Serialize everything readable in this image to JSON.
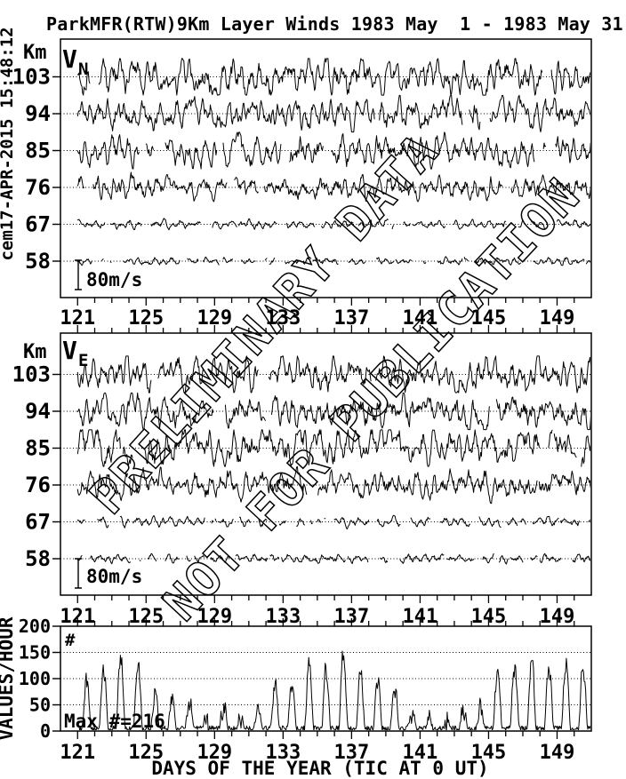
{
  "page": {
    "background": "#ffffff",
    "foreground": "#000000"
  },
  "header": {
    "title": "ParkMFR(RTW)9Km Layer Winds 1983 May  1 - 1983 May 31",
    "timestamp_vertical": "cem17-APR-2015 15:48:12"
  },
  "watermark": {
    "line1": "PRELIMINARY DATA",
    "line2": "NOT FOR PUBLICATION"
  },
  "x_axis": {
    "title": "DAYS OF THE YEAR (TIC AT 0 UT)",
    "tick_labels": [
      121,
      125,
      129,
      133,
      137,
      141,
      145,
      149
    ],
    "range_days": [
      120,
      151
    ],
    "minor_tick_every_days": 1
  },
  "chart_data": [
    {
      "id": "vn",
      "type": "line",
      "label_main": "V",
      "label_sub": "N",
      "unit_label": "Km",
      "scale_label": "80m/s",
      "scale_bar_ms": 80,
      "altitudes_km": [
        103,
        94,
        85,
        76,
        67,
        58
      ],
      "x_range_days": [
        120,
        151
      ],
      "samples_per_day": 24,
      "baseline_value_ms": 0,
      "series": [
        {
          "altitude_km": 103,
          "amplitude_ms": 40,
          "tide_ms": 18,
          "phi": 0.78,
          "gap_rate": 0.004,
          "seed": 101
        },
        {
          "altitude_km": 94,
          "amplitude_ms": 34,
          "tide_ms": 15,
          "phi": 0.78,
          "gap_rate": 0.004,
          "seed": 102
        },
        {
          "altitude_km": 85,
          "amplitude_ms": 34,
          "tide_ms": 16,
          "phi": 0.78,
          "gap_rate": 0.006,
          "seed": 103
        },
        {
          "altitude_km": 76,
          "amplitude_ms": 26,
          "tide_ms": 12,
          "phi": 0.74,
          "gap_rate": 0.008,
          "seed": 104
        },
        {
          "altitude_km": 67,
          "amplitude_ms": 9,
          "tide_ms": 6,
          "phi": 0.6,
          "gap_rate": 0.035,
          "seed": 105
        },
        {
          "altitude_km": 58,
          "amplitude_ms": 8,
          "tide_ms": 5,
          "phi": 0.58,
          "gap_rate": 0.045,
          "seed": 106
        }
      ]
    },
    {
      "id": "ve",
      "type": "line",
      "label_main": "V",
      "label_sub": "E",
      "unit_label": "Km",
      "scale_label": "80m/s",
      "scale_bar_ms": 80,
      "altitudes_km": [
        103,
        94,
        85,
        76,
        67,
        58
      ],
      "x_range_days": [
        120,
        151
      ],
      "samples_per_day": 24,
      "baseline_value_ms": 0,
      "series": [
        {
          "altitude_km": 103,
          "amplitude_ms": 36,
          "tide_ms": 18,
          "phi": 0.78,
          "gap_rate": 0.005,
          "seed": 201
        },
        {
          "altitude_km": 94,
          "amplitude_ms": 36,
          "tide_ms": 16,
          "phi": 0.78,
          "gap_rate": 0.004,
          "seed": 202
        },
        {
          "altitude_km": 85,
          "amplitude_ms": 40,
          "tide_ms": 18,
          "phi": 0.78,
          "gap_rate": 0.004,
          "seed": 203
        },
        {
          "altitude_km": 76,
          "amplitude_ms": 30,
          "tide_ms": 14,
          "phi": 0.74,
          "gap_rate": 0.008,
          "seed": 204
        },
        {
          "altitude_km": 67,
          "amplitude_ms": 10,
          "tide_ms": 7,
          "phi": 0.6,
          "gap_rate": 0.035,
          "seed": 205
        },
        {
          "altitude_km": 58,
          "amplitude_ms": 9,
          "tide_ms": 6,
          "phi": 0.58,
          "gap_rate": 0.045,
          "seed": 206
        }
      ]
    },
    {
      "id": "counts",
      "type": "line",
      "corner_label": "#",
      "ylabel": "VALUES/HOUR",
      "ylim": [
        0,
        200
      ],
      "y_ticks": [
        0,
        50,
        100,
        150,
        200
      ],
      "gridlines_at": [
        50,
        100,
        150
      ],
      "max_label": "Max #=216",
      "max_value": 216,
      "typical_peak": 140,
      "typical_min": 5,
      "samples_per_day": 24,
      "seed": 301
    }
  ]
}
